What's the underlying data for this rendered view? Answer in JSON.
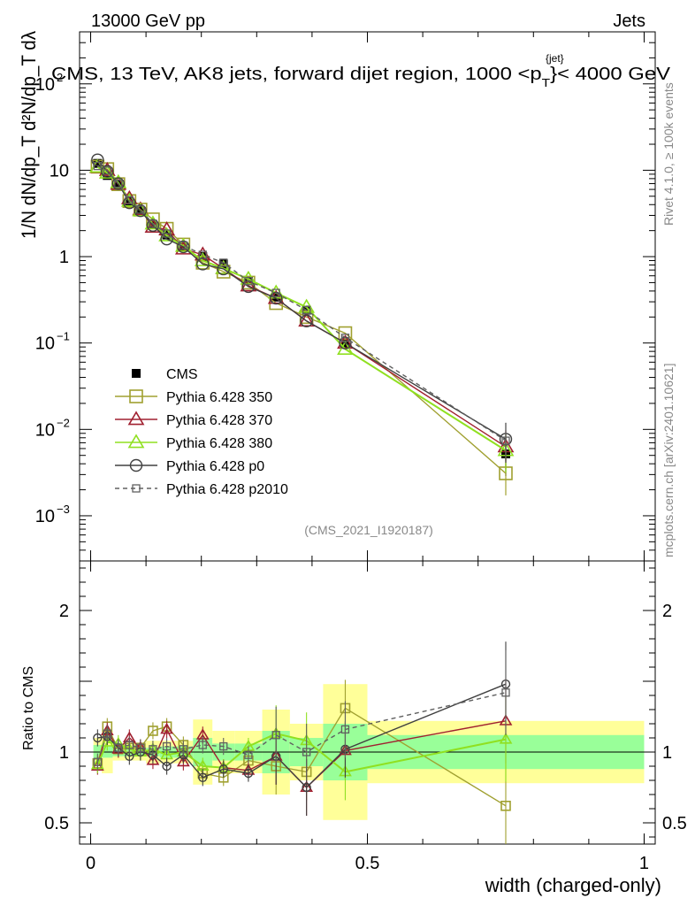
{
  "header": {
    "left": "13000 GeV pp",
    "right": "Jets",
    "title": "CMS, 13 TeV, AK8 jets, forward dijet region, 1000 <p",
    "title_sup": "{jet}",
    "title_sub": "T",
    "title_tail": "}< 4000 GeV",
    "watermark": "(CMS_2021_I1920187)",
    "side_top": "Rivet 4.1.0, ≥ 100k events",
    "side_bottom": "mcplots.cern.ch [arXiv:2401.10621]"
  },
  "chart_data": {
    "type": "line",
    "xlabel": "width (charged-only)",
    "ylabel_top": "1/N dN/dp_T d²N/dp_T dλ",
    "ylabel_bottom": "Ratio to CMS",
    "xlim": [
      -0.02,
      1.02
    ],
    "ylim_main": [
      0.0003,
      400
    ],
    "ylim_ratio": [
      0.35,
      2.35
    ],
    "x_ticks": [
      {
        "v": 0,
        "label": "0"
      },
      {
        "v": 0.5,
        "label": "0.5"
      },
      {
        "v": 1,
        "label": "1"
      }
    ],
    "y_ticks_main": [
      {
        "v": 100,
        "base": "10",
        "exp": "2"
      },
      {
        "v": 10,
        "base": "10",
        "exp": ""
      },
      {
        "v": 1,
        "base": "1",
        "exp": ""
      },
      {
        "v": 0.1,
        "base": "10",
        "exp": "−1"
      },
      {
        "v": 0.01,
        "base": "10",
        "exp": "−2"
      },
      {
        "v": 0.001,
        "base": "10",
        "exp": "−3"
      }
    ],
    "y_ticks_ratio": [
      {
        "v": 0.5,
        "label": "0.5"
      },
      {
        "v": 1,
        "label": "1"
      },
      {
        "v": 2,
        "label": "2"
      }
    ],
    "bins": [
      {
        "x": 0.0125,
        "lo": 0.005,
        "hi": 0.02,
        "inner": 0.05,
        "outer": 0.1
      },
      {
        "x": 0.03,
        "lo": 0.02,
        "hi": 0.04,
        "inner": 0.04,
        "outer": 0.15
      },
      {
        "x": 0.05,
        "lo": 0.04,
        "hi": 0.06,
        "inner": 0.03,
        "outer": 0.06
      },
      {
        "x": 0.07,
        "lo": 0.06,
        "hi": 0.08,
        "inner": 0.03,
        "outer": 0.06
      },
      {
        "x": 0.09,
        "lo": 0.08,
        "hi": 0.1,
        "inner": 0.03,
        "outer": 0.06
      },
      {
        "x": 0.1125,
        "lo": 0.1,
        "hi": 0.125,
        "inner": 0.03,
        "outer": 0.08
      },
      {
        "x": 0.1375,
        "lo": 0.125,
        "hi": 0.15,
        "inner": 0.04,
        "outer": 0.08
      },
      {
        "x": 0.1675,
        "lo": 0.15,
        "hi": 0.185,
        "inner": 0.04,
        "outer": 0.08
      },
      {
        "x": 0.2025,
        "lo": 0.185,
        "hi": 0.22,
        "inner": 0.1,
        "outer": 0.23
      },
      {
        "x": 0.24,
        "lo": 0.22,
        "hi": 0.26,
        "inner": 0.06,
        "outer": 0.15
      },
      {
        "x": 0.285,
        "lo": 0.26,
        "hi": 0.31,
        "inner": 0.06,
        "outer": 0.15
      },
      {
        "x": 0.335,
        "lo": 0.31,
        "hi": 0.36,
        "inner": 0.15,
        "outer": 0.3
      },
      {
        "x": 0.39,
        "lo": 0.36,
        "hi": 0.42,
        "inner": 0.1,
        "outer": 0.2
      },
      {
        "x": 0.46,
        "lo": 0.42,
        "hi": 0.5,
        "inner": 0.2,
        "outer": 0.48
      },
      {
        "x": 0.75,
        "lo": 0.5,
        "hi": 1.0,
        "inner": 0.12,
        "outer": 0.22
      }
    ],
    "band_colors": {
      "inner": "#99ff99",
      "outer": "#ffff99"
    },
    "series": [
      {
        "name": "CMS",
        "color": "#000000",
        "marker": "filled-square",
        "dash": "",
        "values": [
          12.0,
          8.7,
          6.8,
          4.3,
          3.4,
          2.35,
          1.78,
          1.32,
          1.0,
          0.82,
          0.53,
          0.34,
          0.24,
          0.099,
          0.0052
        ],
        "ratio": [
          1,
          1,
          1,
          1,
          1,
          1,
          1,
          1,
          1,
          1,
          1,
          1,
          1,
          1,
          1
        ]
      },
      {
        "name": "Pythia 6.428 350",
        "color": "#a0a030",
        "marker": "open-square",
        "dash": "",
        "values": [
          11.0,
          10.3,
          6.9,
          4.4,
          3.5,
          2.7,
          2.1,
          1.38,
          0.85,
          0.67,
          0.5,
          0.29,
          0.2,
          0.13,
          0.0031
        ],
        "ratio": [
          0.92,
          1.18,
          1.02,
          1.03,
          1.03,
          1.15,
          1.18,
          1.05,
          0.85,
          0.82,
          0.94,
          0.9,
          0.86,
          1.31,
          0.62
        ]
      },
      {
        "name": "Pythia 6.428 370",
        "color": "#a02030",
        "marker": "open-triangle",
        "dash": "",
        "values": [
          10.8,
          10.0,
          6.9,
          4.7,
          3.5,
          2.2,
          2.05,
          1.23,
          1.05,
          0.73,
          0.46,
          0.33,
          0.18,
          0.1,
          0.0063
        ],
        "ratio": [
          0.9,
          1.15,
          1.02,
          1.1,
          1.03,
          0.94,
          1.16,
          0.93,
          1.12,
          0.89,
          0.87,
          0.97,
          0.75,
          1.01,
          1.22
        ]
      },
      {
        "name": "Pythia 6.428 380",
        "color": "#90e020",
        "marker": "open-triangle",
        "dash": "",
        "values": [
          10.9,
          9.3,
          7.2,
          4.4,
          3.4,
          2.4,
          1.75,
          1.32,
          0.9,
          0.73,
          0.55,
          0.38,
          0.26,
          0.085,
          0.0057
        ],
        "ratio": [
          0.91,
          1.07,
          1.06,
          1.02,
          1.0,
          1.02,
          0.98,
          1.0,
          0.9,
          0.89,
          1.04,
          1.13,
          1.08,
          0.86,
          1.09
        ]
      },
      {
        "name": "Pythia 6.428 p0",
        "color": "#404040",
        "marker": "open-circle",
        "dash": "",
        "values": [
          13.2,
          9.7,
          7.0,
          4.2,
          3.4,
          2.3,
          1.6,
          1.3,
          0.82,
          0.72,
          0.45,
          0.33,
          0.18,
          0.1,
          0.0077
        ],
        "ratio": [
          1.1,
          1.11,
          1.03,
          0.97,
          1.0,
          0.98,
          0.9,
          0.98,
          0.82,
          0.88,
          0.85,
          0.97,
          0.75,
          1.02,
          1.48
        ]
      },
      {
        "name": "Pythia 6.428 p2010",
        "color": "#606060",
        "marker": "open-square-small",
        "dash": "5,4",
        "values": [
          11.2,
          9.9,
          7.0,
          4.5,
          3.5,
          2.4,
          1.85,
          1.35,
          1.05,
          0.85,
          0.52,
          0.38,
          0.24,
          0.115,
          0.0074
        ],
        "ratio": [
          0.93,
          1.13,
          1.03,
          1.05,
          1.03,
          1.02,
          1.04,
          1.02,
          1.05,
          1.04,
          0.98,
          1.12,
          1.0,
          1.16,
          1.42
        ]
      }
    ]
  }
}
